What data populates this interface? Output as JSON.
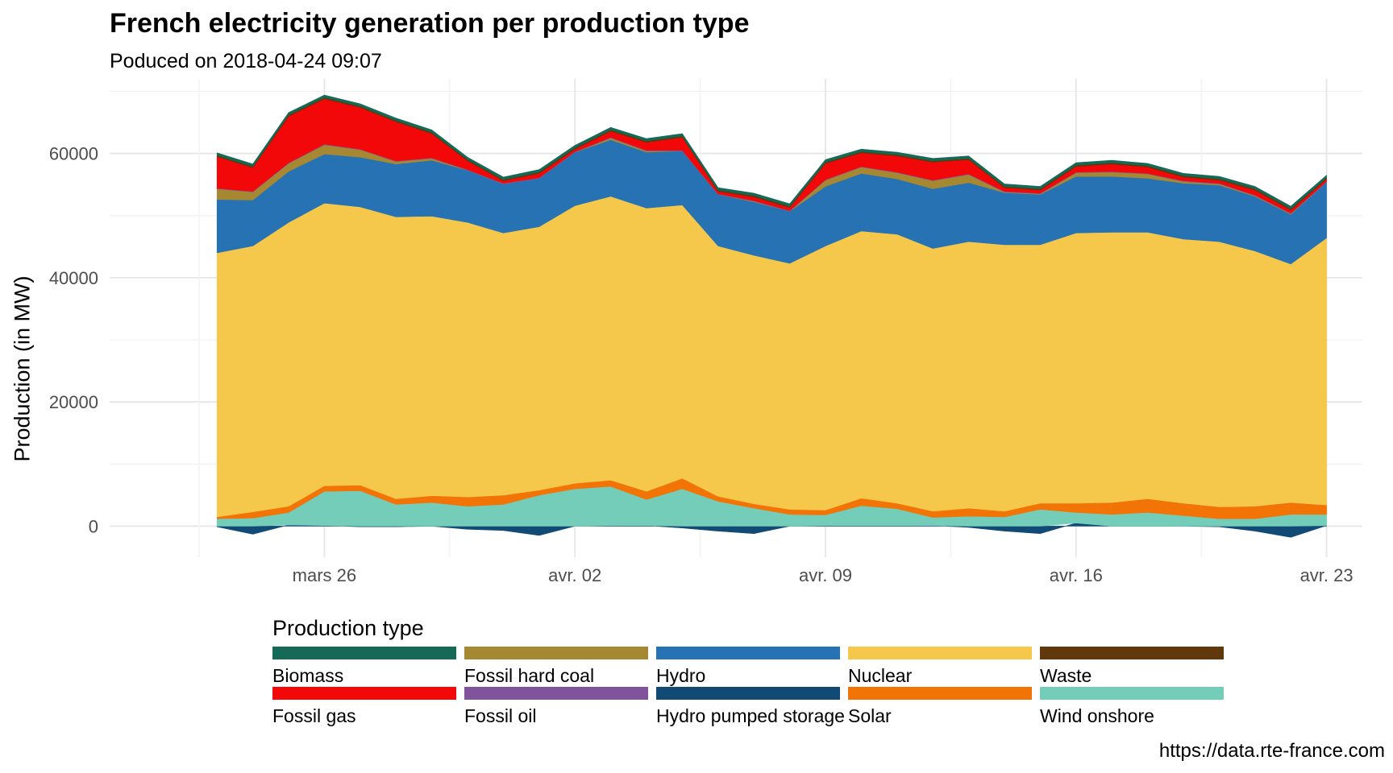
{
  "chart_data": {
    "type": "area",
    "title": "French electricity generation per production type",
    "subtitle": "Poduced on 2018-04-24 09:07",
    "ylabel": "Production (in MW)",
    "xlabel": "",
    "caption": "https://data.rte-france.com",
    "ylim": [
      -5000,
      72000
    ],
    "xlim": [
      "2018-03-20",
      "2018-04-24"
    ],
    "yticks": [
      0,
      20000,
      40000,
      60000
    ],
    "xticks": [
      {
        "date": "2018-03-26",
        "label": "mars 26"
      },
      {
        "date": "2018-04-02",
        "label": "avr. 02"
      },
      {
        "date": "2018-04-09",
        "label": "avr. 09"
      },
      {
        "date": "2018-04-16",
        "label": "avr. 16"
      },
      {
        "date": "2018-04-23",
        "label": "avr. 23"
      }
    ],
    "grid": true,
    "legend_position": "bottom",
    "legend_title": "Production type",
    "x": [
      "2018-03-23",
      "2018-03-24",
      "2018-03-25",
      "2018-03-26",
      "2018-03-27",
      "2018-03-28",
      "2018-03-29",
      "2018-03-30",
      "2018-03-31",
      "2018-04-01",
      "2018-04-02",
      "2018-04-03",
      "2018-04-04",
      "2018-04-05",
      "2018-04-06",
      "2018-04-07",
      "2018-04-08",
      "2018-04-09",
      "2018-04-10",
      "2018-04-11",
      "2018-04-12",
      "2018-04-13",
      "2018-04-14",
      "2018-04-15",
      "2018-04-16",
      "2018-04-17",
      "2018-04-18",
      "2018-04-19",
      "2018-04-20",
      "2018-04-21",
      "2018-04-22",
      "2018-04-23"
    ],
    "series": [
      {
        "name": "Hydro pumped storage",
        "color": "#114A75",
        "values": [
          -100,
          -1300,
          200,
          100,
          -100,
          -100,
          0,
          -500,
          -700,
          -1500,
          0,
          100,
          100,
          -300,
          -800,
          -1200,
          0,
          100,
          100,
          100,
          100,
          -200,
          -800,
          -1200,
          500,
          0,
          0,
          0,
          -100,
          -800,
          -1800,
          100
        ]
      },
      {
        "name": "Wind onshore",
        "color": "#74CDB9",
        "values": [
          1200,
          1300,
          2000,
          5500,
          5700,
          3500,
          3800,
          3200,
          3500,
          5000,
          6000,
          6300,
          4200,
          6000,
          4000,
          2900,
          1900,
          1700,
          3200,
          2700,
          1300,
          1600,
          1500,
          2700,
          1700,
          1900,
          2200,
          1700,
          1200,
          1200,
          1900,
          1800
        ]
      },
      {
        "name": "Solar",
        "color": "#F27406",
        "values": [
          300,
          1000,
          1000,
          900,
          900,
          900,
          1100,
          1500,
          1500,
          800,
          900,
          1000,
          1300,
          1700,
          800,
          700,
          800,
          800,
          1200,
          900,
          1000,
          1300,
          900,
          1000,
          1500,
          1900,
          2200,
          2000,
          1900,
          2000,
          1900,
          1500
        ]
      },
      {
        "name": "Nuclear",
        "color": "#F5C84C",
        "values": [
          42500,
          42800,
          45700,
          45500,
          44800,
          45400,
          45000,
          44200,
          42200,
          42400,
          44700,
          45700,
          45600,
          44000,
          40300,
          40000,
          39600,
          42500,
          43000,
          43300,
          42300,
          42900,
          42900,
          41600,
          43500,
          43500,
          42900,
          42500,
          42700,
          41100,
          38400,
          43000
        ]
      },
      {
        "name": "Hydro",
        "color": "#2772B2",
        "values": [
          8600,
          7400,
          8200,
          7900,
          8000,
          8500,
          9000,
          8400,
          7900,
          7800,
          8600,
          9100,
          9000,
          8700,
          8300,
          8600,
          8400,
          9600,
          9300,
          8900,
          9600,
          9500,
          8400,
          8100,
          9100,
          9000,
          8700,
          9000,
          9100,
          8800,
          8000,
          9000
        ]
      },
      {
        "name": "Fossil hard coal",
        "color": "#A68832",
        "values": [
          1700,
          1300,
          1300,
          1500,
          1200,
          400,
          300,
          0,
          0,
          0,
          0,
          300,
          200,
          0,
          0,
          100,
          0,
          1000,
          1000,
          1000,
          1300,
          1300,
          100,
          100,
          600,
          700,
          700,
          300,
          200,
          100,
          100,
          0
        ]
      },
      {
        "name": "Fossil oil",
        "color": "#7F549B",
        "values": [
          100,
          100,
          100,
          100,
          100,
          100,
          100,
          100,
          100,
          100,
          100,
          100,
          100,
          100,
          100,
          100,
          100,
          100,
          100,
          100,
          100,
          100,
          100,
          100,
          100,
          100,
          100,
          100,
          100,
          100,
          100,
          100
        ]
      },
      {
        "name": "Fossil gas",
        "color": "#F20809",
        "values": [
          5100,
          3800,
          7500,
          7300,
          6700,
          6300,
          3900,
          1400,
          400,
          700,
          400,
          1000,
          1300,
          2100,
          400,
          600,
          500,
          2600,
          2200,
          2600,
          2900,
          2300,
          600,
          500,
          900,
          1200,
          1000,
          600,
          500,
          800,
          500,
          400
        ]
      },
      {
        "name": "Waste",
        "color": "#61380B",
        "values": [
          200,
          200,
          200,
          200,
          200,
          200,
          200,
          200,
          200,
          200,
          200,
          200,
          200,
          200,
          200,
          200,
          200,
          200,
          200,
          200,
          200,
          200,
          200,
          200,
          200,
          200,
          200,
          200,
          200,
          200,
          200,
          200
        ]
      },
      {
        "name": "Biomass",
        "color": "#156956",
        "values": [
          400,
          400,
          400,
          400,
          400,
          400,
          400,
          400,
          400,
          400,
          400,
          400,
          400,
          400,
          400,
          400,
          400,
          400,
          400,
          400,
          400,
          400,
          400,
          400,
          400,
          400,
          400,
          400,
          400,
          400,
          400,
          400
        ]
      }
    ]
  },
  "legend_items": [
    {
      "label": "Biomass",
      "color": "#156956"
    },
    {
      "label": "Fossil hard coal",
      "color": "#A68832"
    },
    {
      "label": "Hydro",
      "color": "#2772B2"
    },
    {
      "label": "Nuclear",
      "color": "#F5C84C"
    },
    {
      "label": "Waste",
      "color": "#61380B"
    },
    {
      "label": "Fossil gas",
      "color": "#F20809"
    },
    {
      "label": "Fossil oil",
      "color": "#7F549B"
    },
    {
      "label": "Hydro pumped storage",
      "color": "#114A75"
    },
    {
      "label": "Solar",
      "color": "#F27406"
    },
    {
      "label": "Wind onshore",
      "color": "#74CDB9"
    }
  ]
}
